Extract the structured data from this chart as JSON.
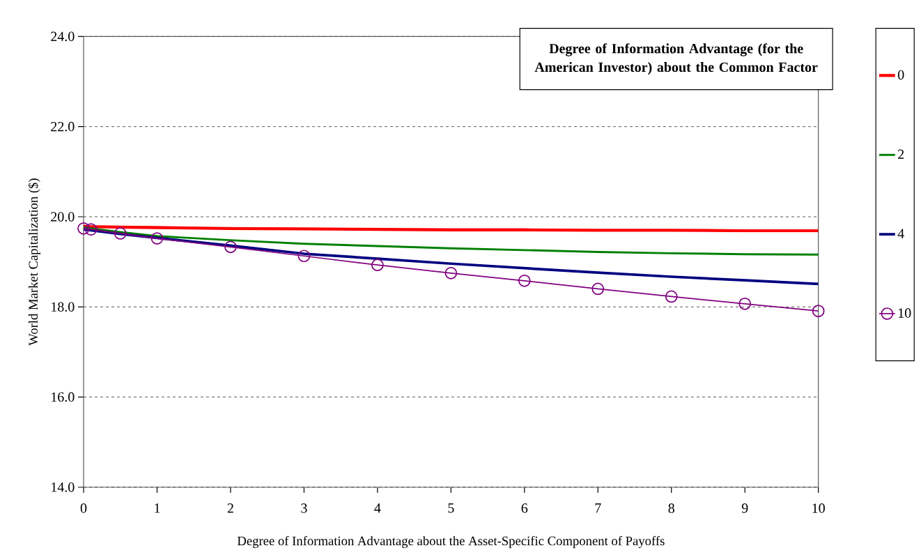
{
  "chart_data": {
    "type": "line",
    "xlabel": "Degree of Information Advantage about the Asset-Specific Component of Payoffs",
    "ylabel": "World Market Capitalization ($)",
    "legend_title": "Degree of Information Advantage (for the American Investor) about the Common Factor",
    "x": [
      0,
      0.1,
      0.5,
      1,
      2,
      3,
      4,
      5,
      6,
      7,
      8,
      9,
      10
    ],
    "series": [
      {
        "name": "0",
        "color": "#ff0000",
        "values": [
          19.79,
          19.78,
          19.77,
          19.76,
          19.74,
          19.73,
          19.72,
          19.71,
          19.71,
          19.7,
          19.7,
          19.69,
          19.69
        ]
      },
      {
        "name": "2",
        "color": "#008000",
        "values": [
          19.76,
          19.74,
          19.66,
          19.57,
          19.48,
          19.4,
          19.35,
          19.3,
          19.26,
          19.22,
          19.19,
          19.17,
          19.16
        ]
      },
      {
        "name": "4",
        "color": "#000080",
        "values": [
          19.72,
          19.7,
          19.62,
          19.53,
          19.36,
          19.18,
          19.07,
          18.96,
          18.86,
          18.76,
          18.67,
          18.59,
          18.51
        ]
      },
      {
        "name": "10",
        "color": "#800080",
        "marker": "circle",
        "values": [
          19.74,
          19.72,
          19.63,
          19.52,
          19.33,
          19.13,
          18.93,
          18.75,
          18.58,
          18.4,
          18.23,
          18.07,
          17.91
        ]
      }
    ],
    "xlim": [
      0,
      10
    ],
    "ylim": [
      14,
      24
    ],
    "xticks": [
      0,
      1,
      2,
      3,
      4,
      5,
      6,
      7,
      8,
      9,
      10
    ],
    "yticks": [
      {
        "value": 14,
        "label": "14.0"
      },
      {
        "value": 16,
        "label": "16.0"
      },
      {
        "value": 18,
        "label": "18.0"
      },
      {
        "value": 20,
        "label": "20.0"
      },
      {
        "value": 22,
        "label": "22.0"
      },
      {
        "value": 24,
        "label": "24.0"
      }
    ],
    "grid": "y",
    "legend": "right",
    "line_style": "solid"
  }
}
